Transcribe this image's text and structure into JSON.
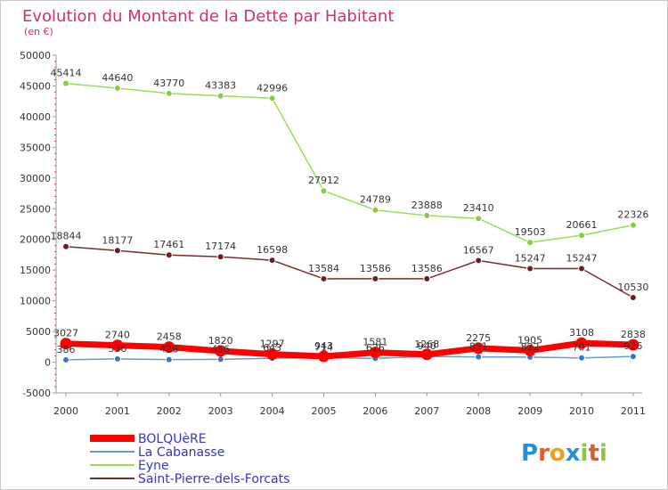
{
  "chart_data": {
    "type": "line",
    "title": "Evolution du Montant de la Dette par Habitant",
    "subtitle": "(en €)",
    "xlabel": "",
    "ylabel": "",
    "x": [
      "2000",
      "2001",
      "2002",
      "2003",
      "2004",
      "2005",
      "2006",
      "2007",
      "2008",
      "2009",
      "2010",
      "2011"
    ],
    "ylim": [
      -5000,
      50000
    ],
    "yticks": [
      "-5000",
      "0",
      "5000",
      "10000",
      "15000",
      "20000",
      "25000",
      "30000",
      "35000",
      "40000",
      "45000",
      "50000"
    ],
    "grid": false,
    "legend_position": "bottom-left",
    "series": [
      {
        "name": "Eyne",
        "color": "#99dd55",
        "marker": "#88cc44",
        "width": 1.5,
        "values": [
          45414,
          44640,
          43770,
          43383,
          42996,
          27912,
          24789,
          23888,
          23410,
          19503,
          20661,
          22326
        ],
        "labels": [
          "45414",
          "44640",
          "43770",
          "43383",
          "42996",
          "27912",
          "24789",
          "23888",
          "23410",
          "19503",
          "20661",
          "22326"
        ]
      },
      {
        "name": "Saint-Pierre-dels-Forcats",
        "color": "#7a2a2a",
        "marker": "#6a1f1f",
        "width": 1.5,
        "values": [
          18844,
          18177,
          17461,
          17174,
          16598,
          13584,
          13586,
          13586,
          16567,
          15247,
          15247,
          10530
        ],
        "labels": [
          "18844",
          "18177",
          "17461",
          "17174",
          "16598",
          "13584",
          "13586",
          "13586",
          "16567",
          "15247",
          "15247",
          "10530"
        ]
      },
      {
        "name": "La Cabanasse",
        "color": "#6699cc",
        "marker": "#3377cc",
        "width": 1.5,
        "values": [
          386,
          536,
          426,
          456,
          643,
          714,
          626,
          940,
          851,
          822,
          701,
          926
        ],
        "labels": [
          "386",
          "536",
          "426",
          "456",
          "643",
          "714",
          "626",
          "940",
          "851",
          "822",
          "701",
          "926"
        ]
      },
      {
        "name": "BOLQUèRE",
        "color": "#ff0000",
        "marker": "#ff0000",
        "width": 7,
        "values": [
          3027,
          2740,
          2458,
          1820,
          1297,
          943,
          1581,
          1268,
          2275,
          1905,
          3108,
          2838
        ],
        "labels": [
          "3027",
          "2740",
          "2458",
          "1820",
          "1297",
          "943",
          "1581",
          "1268",
          "2275",
          "1905",
          "3108",
          "2838"
        ]
      }
    ],
    "legend_order": [
      "BOLQUèRE",
      "La Cabanasse",
      "Eyne",
      "Saint-Pierre-dels-Forcats"
    ]
  },
  "logo": {
    "text": "Proxiti",
    "letter_colors": [
      "#2a8fd6",
      "#e05c2a",
      "#e6a21a",
      "#2a8fd6",
      "#8cc63f",
      "#e05c2a",
      "#8cc63f"
    ]
  }
}
